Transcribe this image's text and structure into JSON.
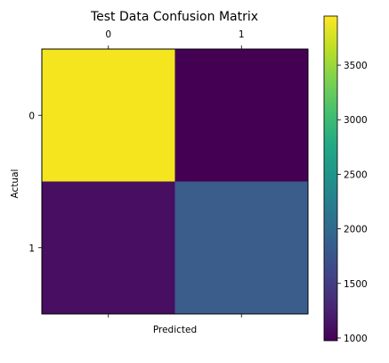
{
  "chart_data": {
    "type": "heatmap",
    "title": "Test Data Confusion Matrix",
    "xlabel": "Predicted",
    "ylabel": "Actual",
    "x_tick_labels": [
      "0",
      "1"
    ],
    "y_tick_labels": [
      "0",
      "1"
    ],
    "matrix": [
      [
        3940,
        1000
      ],
      [
        1000,
        1830
      ]
    ],
    "colormap": "viridis",
    "color_range": [
      975,
      3950
    ],
    "colorbar_ticks": [
      "1000",
      "1500",
      "2000",
      "2500",
      "3000",
      "3500"
    ],
    "cell_colors": [
      [
        "#f5e51f",
        "#440154"
      ],
      [
        "#470e61",
        "#3a5d8c"
      ]
    ],
    "x_tick_position": "top"
  }
}
